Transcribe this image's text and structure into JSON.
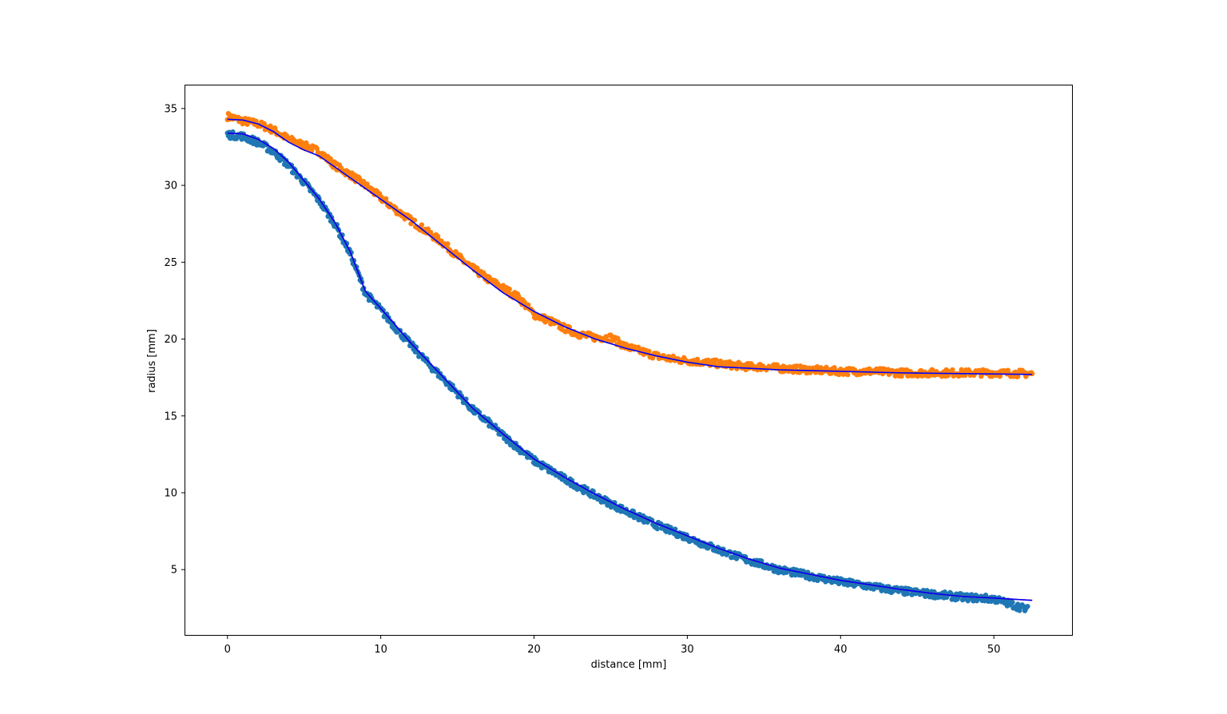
{
  "chart_data": {
    "type": "scatter",
    "xlabel": "distance [mm]",
    "ylabel": "radius [mm]",
    "xlim": [
      -2.75,
      55.1
    ],
    "ylim": [
      0.75,
      36.5
    ],
    "xticks": [
      0,
      10,
      20,
      30,
      40,
      50
    ],
    "yticks": [
      5,
      10,
      15,
      20,
      25,
      30,
      35
    ],
    "grid": false,
    "legend": "none",
    "colors": {
      "outer_points": "#ff7f0e",
      "inner_points": "#1f77b4",
      "outer_fit": "#0000ff",
      "inner_fit": "#ff0000",
      "inner_fit_overlay": "#0000ff"
    },
    "series": [
      {
        "kind": "scatter",
        "color": "#ff7f0e",
        "x": [
          0,
          1,
          2,
          3,
          4,
          5,
          6,
          7,
          8,
          9,
          10,
          11,
          12,
          13,
          14,
          15,
          16,
          17,
          18,
          19,
          20,
          21,
          22,
          23,
          24,
          25,
          26,
          27,
          28,
          29,
          30,
          31,
          32,
          33,
          34,
          35,
          36,
          38,
          40,
          42,
          44,
          46,
          48,
          50,
          52.5
        ],
        "y": [
          34.5,
          34.2,
          34.0,
          33.6,
          33.0,
          32.6,
          32.2,
          31.3,
          30.7,
          30.0,
          29.2,
          28.4,
          27.7,
          27.0,
          26.3,
          25.4,
          24.6,
          23.9,
          23.3,
          22.7,
          21.6,
          21.2,
          20.7,
          20.3,
          20.1,
          20.1,
          19.5,
          19.2,
          18.9,
          18.7,
          18.6,
          18.5,
          18.4,
          18.3,
          18.2,
          18.2,
          18.1,
          18.0,
          17.9,
          17.9,
          17.8,
          17.8,
          17.8,
          17.8,
          17.75
        ]
      },
      {
        "kind": "scatter",
        "color": "#1f77b4",
        "x": [
          0,
          1,
          2,
          3,
          4,
          5,
          6,
          7,
          8,
          9,
          10,
          11,
          12,
          13,
          14,
          15,
          16,
          17,
          18,
          19,
          20,
          22,
          24,
          26,
          28,
          30,
          32,
          34,
          36,
          38,
          40,
          42,
          44,
          46,
          48,
          50,
          52.2
        ],
        "y": [
          33.3,
          33.2,
          32.8,
          32.2,
          31.3,
          30.2,
          29.0,
          27.5,
          25.6,
          23.0,
          21.9,
          20.7,
          19.6,
          18.5,
          17.5,
          16.5,
          15.4,
          14.6,
          13.7,
          12.9,
          12.1,
          10.9,
          9.8,
          8.8,
          7.9,
          7.1,
          6.3,
          5.6,
          5.0,
          4.6,
          4.2,
          3.9,
          3.6,
          3.4,
          3.2,
          3.1,
          2.4
        ]
      },
      {
        "kind": "line",
        "color": "#0000ff",
        "x": [
          0,
          1,
          2,
          3,
          4,
          5,
          6,
          7,
          8,
          10,
          12,
          14,
          16,
          18,
          20,
          22,
          24,
          26,
          28,
          30,
          32,
          34,
          36,
          40,
          44,
          48,
          52.5
        ],
        "y": [
          34.3,
          34.25,
          34.0,
          33.5,
          32.8,
          32.3,
          31.9,
          31.2,
          30.5,
          29.1,
          27.7,
          26.1,
          24.5,
          23.0,
          21.8,
          20.8,
          20.0,
          19.4,
          18.9,
          18.5,
          18.2,
          18.1,
          18.0,
          17.9,
          17.8,
          17.75,
          17.7
        ]
      },
      {
        "kind": "line",
        "color": "#ff0000",
        "x": [
          0,
          1,
          2,
          3,
          4,
          5,
          6,
          7,
          8,
          9,
          10,
          12,
          14,
          16,
          18,
          20,
          22,
          24,
          26,
          28,
          30,
          32,
          34,
          36,
          38,
          40,
          42,
          44,
          46,
          48,
          50,
          52.5
        ],
        "y": [
          33.4,
          33.35,
          33.0,
          32.4,
          31.5,
          30.3,
          29.1,
          27.6,
          25.7,
          23.1,
          22.0,
          19.7,
          17.6,
          15.5,
          13.8,
          12.2,
          11.0,
          9.9,
          8.9,
          8.0,
          7.2,
          6.4,
          5.7,
          5.1,
          4.7,
          4.3,
          4.0,
          3.7,
          3.45,
          3.25,
          3.15,
          3.0
        ]
      },
      {
        "kind": "line",
        "color": "#0000ff",
        "x": [
          0,
          1,
          2,
          3,
          4,
          5,
          6,
          7,
          8,
          9,
          10,
          12,
          14,
          16,
          18,
          20,
          22,
          24,
          26,
          28,
          30,
          32,
          34,
          36,
          38,
          40,
          42,
          44,
          46,
          48,
          50,
          52.5
        ],
        "y": [
          33.4,
          33.35,
          33.0,
          32.4,
          31.5,
          30.3,
          29.1,
          27.6,
          25.7,
          23.1,
          22.0,
          19.7,
          17.6,
          15.5,
          13.8,
          12.2,
          11.0,
          9.9,
          8.9,
          8.0,
          7.2,
          6.4,
          5.7,
          5.1,
          4.7,
          4.3,
          4.0,
          3.7,
          3.45,
          3.25,
          3.15,
          3.0
        ]
      }
    ]
  }
}
